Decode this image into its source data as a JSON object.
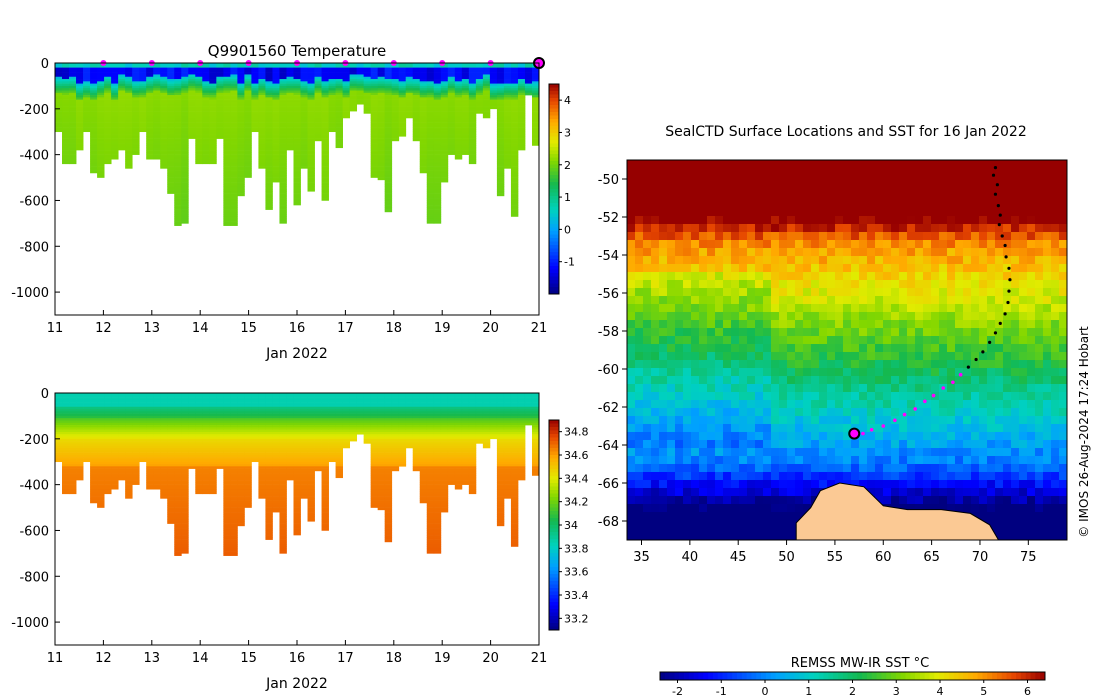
{
  "chart_data": [
    {
      "id": "temperature",
      "type": "heatmap",
      "title": "Q9901560  Temperature",
      "xlabel": "Jan 2022",
      "ylabel": "",
      "xlim": [
        11,
        21
      ],
      "ylim": [
        -1100,
        0
      ],
      "xticks": [
        "11",
        "12",
        "13",
        "14",
        "15",
        "16",
        "17",
        "18",
        "19",
        "20",
        "21"
      ],
      "yticks": [
        0,
        -200,
        -400,
        -600,
        -800,
        -1000
      ],
      "yticklabels": [
        "0",
        "-200",
        "-400",
        "-600",
        "-800",
        "-1000"
      ],
      "colorbar": {
        "min": -2,
        "max": 4.5,
        "ticks": [
          4,
          3,
          2,
          1,
          0,
          -1
        ],
        "ticklabels": [
          "4",
          "3",
          "2",
          "1",
          "0",
          "-1"
        ]
      },
      "daily_markers": [
        12,
        13,
        14,
        15,
        16,
        17,
        18,
        19,
        20
      ],
      "last_profile_day": 21,
      "profile_depth_m": [
        300,
        440,
        440,
        380,
        300,
        480,
        500,
        440,
        420,
        380,
        460,
        400,
        300,
        420,
        420,
        460,
        570,
        710,
        700,
        330,
        440,
        440,
        440,
        330,
        710,
        710,
        580,
        500,
        300,
        460,
        640,
        520,
        700,
        380,
        620,
        460,
        560,
        340,
        600,
        300,
        370,
        240,
        210,
        180,
        220,
        500,
        510,
        650,
        340,
        320,
        240,
        340,
        480,
        700,
        700,
        520,
        400,
        420,
        400,
        440,
        220,
        240,
        200,
        580,
        460,
        670,
        380,
        140,
        360
      ]
    },
    {
      "id": "salinity",
      "type": "heatmap",
      "title": "",
      "xlabel": "Jan 2022",
      "ylabel": "",
      "xlim": [
        11,
        21
      ],
      "ylim": [
        -1100,
        0
      ],
      "xticks": [
        "11",
        "12",
        "13",
        "14",
        "15",
        "16",
        "17",
        "18",
        "19",
        "20",
        "21"
      ],
      "yticks": [
        0,
        -200,
        -400,
        -600,
        -800,
        -1000
      ],
      "yticklabels": [
        "0",
        "-200",
        "-400",
        "-600",
        "-800",
        "-1000"
      ],
      "colorbar": {
        "min": 33.1,
        "max": 34.9,
        "ticks": [
          34.8,
          34.6,
          34.4,
          34.2,
          34,
          33.8,
          33.6,
          33.4,
          33.2
        ],
        "ticklabels": [
          "34.8",
          "34.6",
          "34.4",
          "34.2",
          "34",
          "33.8",
          "33.6",
          "33.4",
          "33.2"
        ]
      }
    },
    {
      "id": "map",
      "type": "heatmap",
      "title": "SealCTD Surface Locations and SST for 16 Jan 2022",
      "xlim": [
        33.5,
        79
      ],
      "ylim": [
        -69,
        -49
      ],
      "xticks": [
        35,
        40,
        45,
        50,
        55,
        60,
        65,
        70,
        75
      ],
      "xticklabels": [
        "35",
        "40",
        "45",
        "50",
        "55",
        "60",
        "65",
        "70",
        "75"
      ],
      "yticks": [
        -50,
        -52,
        -54,
        -56,
        -58,
        -60,
        -62,
        -64,
        -66,
        -68
      ],
      "yticklabels": [
        "-50",
        "-52",
        "-54",
        "-56",
        "-58",
        "-60",
        "-62",
        "-64",
        "-66",
        "-68"
      ],
      "track_black": [
        [
          71.6,
          -49.4
        ],
        [
          71.4,
          -49.8
        ],
        [
          71.8,
          -50.3
        ],
        [
          71.6,
          -50.8
        ],
        [
          71.9,
          -51.4
        ],
        [
          72.1,
          -51.9
        ],
        [
          72.0,
          -52.4
        ],
        [
          72.3,
          -53.0
        ],
        [
          72.6,
          -53.5
        ],
        [
          72.7,
          -54.1
        ],
        [
          73.0,
          -54.7
        ],
        [
          73.1,
          -55.3
        ],
        [
          73.0,
          -55.9
        ],
        [
          72.9,
          -56.5
        ],
        [
          72.6,
          -57.1
        ],
        [
          72.1,
          -57.6
        ],
        [
          71.6,
          -58.1
        ],
        [
          71.0,
          -58.6
        ],
        [
          70.3,
          -59.1
        ],
        [
          69.6,
          -59.5
        ],
        [
          68.8,
          -59.9
        ],
        [
          68.0,
          -60.3
        ]
      ],
      "track_magenta": [
        [
          68.0,
          -60.3
        ],
        [
          67.2,
          -60.7
        ],
        [
          66.2,
          -61.0
        ],
        [
          65.2,
          -61.4
        ],
        [
          64.3,
          -61.7
        ],
        [
          63.3,
          -62.1
        ],
        [
          62.2,
          -62.4
        ],
        [
          61.2,
          -62.7
        ],
        [
          60.0,
          -63.0
        ],
        [
          58.8,
          -63.2
        ],
        [
          57.9,
          -63.4
        ],
        [
          57.0,
          -63.4
        ]
      ],
      "surface_location": [
        57.0,
        -63.4
      ],
      "land_label": "",
      "colorbar": {
        "label": "REMSS MW-IR SST °C",
        "min": -2.4,
        "max": 6.4,
        "ticks": [
          -2,
          -1,
          0,
          1,
          2,
          3,
          4,
          5,
          6
        ],
        "ticklabels": [
          "-2",
          "-1",
          "0",
          "1",
          "2",
          "3",
          "4",
          "5",
          "6"
        ]
      }
    }
  ],
  "credit": "© IMOS 26-Aug-2024 17:24 Hobart",
  "colors": {
    "background": "#ffffff",
    "land": "#fbc994",
    "marker": "#ff00ff",
    "track": "#000000"
  }
}
